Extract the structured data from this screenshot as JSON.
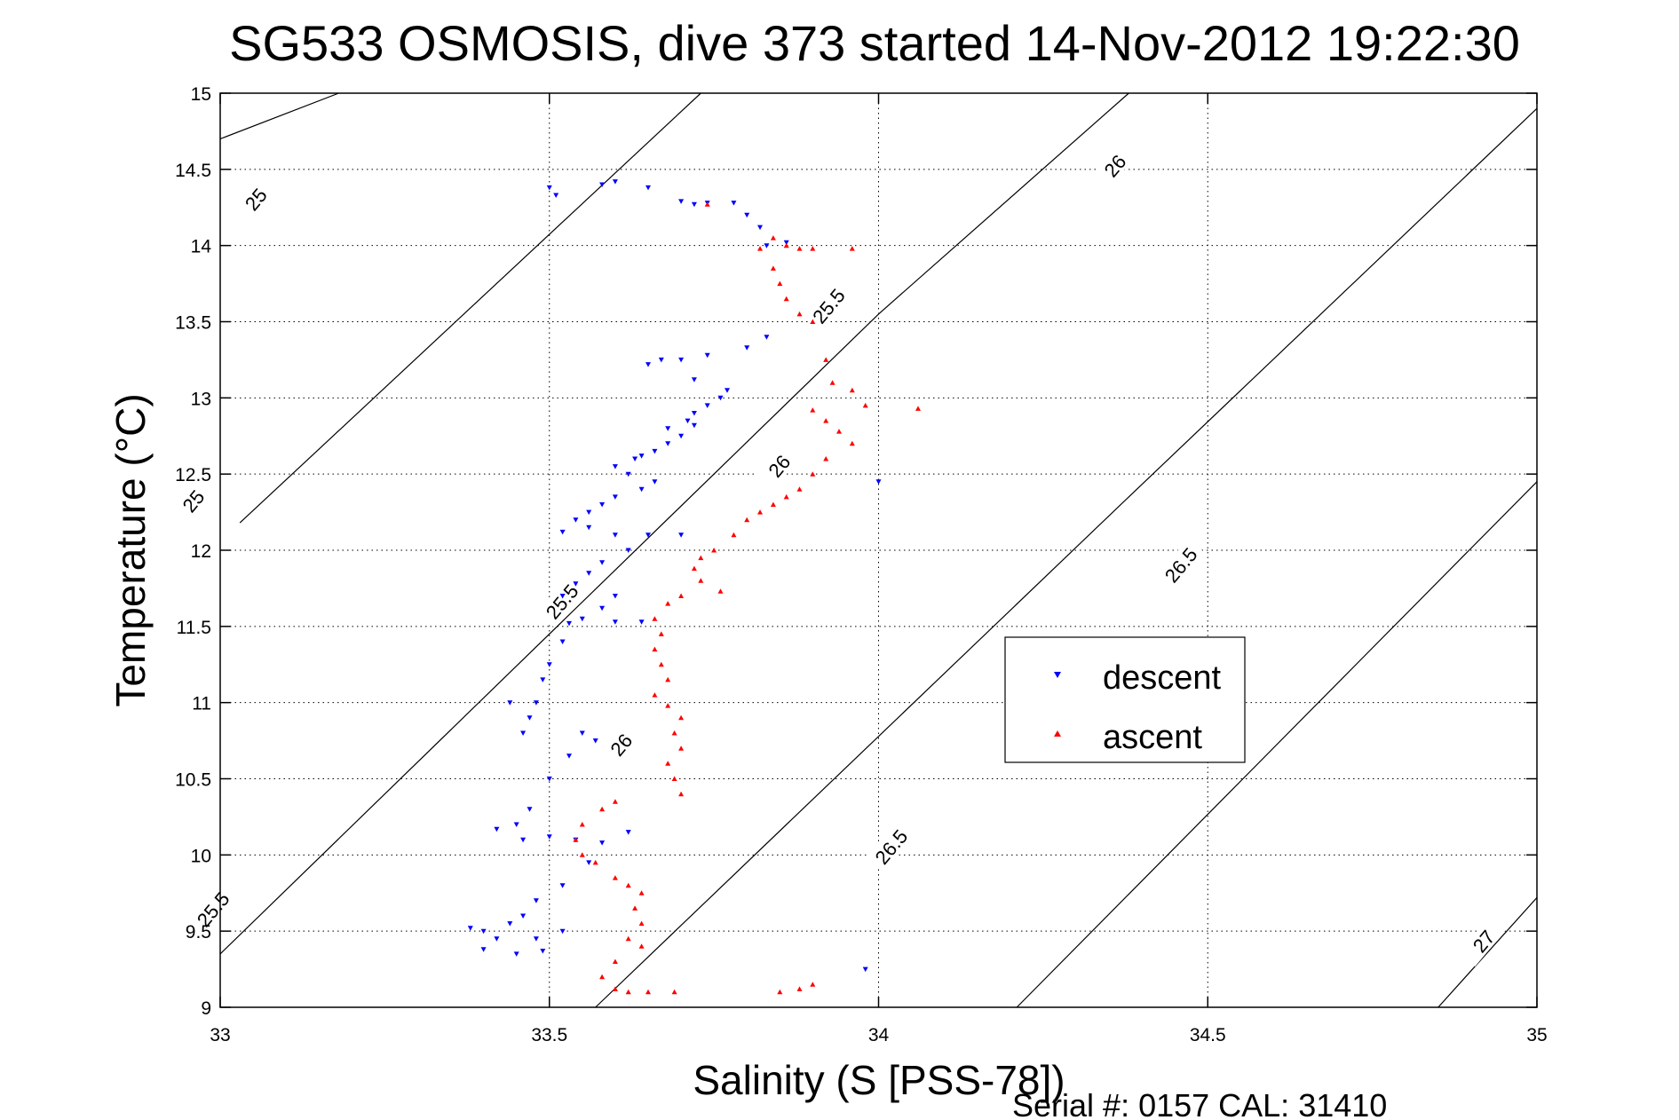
{
  "chart_data": {
    "type": "scatter",
    "title": "SG533 OSMOSIS, dive 373 started 14-Nov-2012 19:22:30",
    "xlabel": "Salinity (S [PSS-78])",
    "ylabel": "Temperature (°C)",
    "xlim": [
      33,
      35
    ],
    "ylim": [
      9,
      15
    ],
    "xticks": [
      "33",
      "33.5",
      "34",
      "34.5",
      "35"
    ],
    "yticks": [
      "9",
      "9.5",
      "10",
      "10.5",
      "11",
      "11.5",
      "12",
      "12.5",
      "13",
      "13.5",
      "14",
      "14.5",
      "15"
    ],
    "grid": true,
    "legend_position": "right",
    "density_contours": [
      {
        "level": "25",
        "labels": [
          "25",
          "25"
        ]
      },
      {
        "level": "25.5",
        "labels": [
          "25.5",
          "25.5",
          "25.5"
        ]
      },
      {
        "level": "26",
        "labels": [
          "26",
          "26",
          "26"
        ]
      },
      {
        "level": "26.5",
        "labels": [
          "26.5",
          "26.5"
        ]
      },
      {
        "level": "27",
        "labels": [
          "27"
        ]
      }
    ],
    "series": [
      {
        "name": "descent",
        "color": "#0000ff",
        "marker": "triangle-down",
        "points": [
          [
            33.5,
            14.38
          ],
          [
            33.51,
            14.33
          ],
          [
            33.58,
            14.4
          ],
          [
            33.6,
            14.42
          ],
          [
            33.65,
            14.38
          ],
          [
            33.7,
            14.29
          ],
          [
            33.74,
            14.28
          ],
          [
            33.78,
            14.28
          ],
          [
            33.8,
            14.2
          ],
          [
            33.82,
            14.12
          ],
          [
            33.83,
            14.0
          ],
          [
            33.86,
            14.02
          ],
          [
            33.83,
            13.4
          ],
          [
            33.8,
            13.33
          ],
          [
            33.74,
            13.28
          ],
          [
            33.7,
            13.25
          ],
          [
            33.67,
            13.25
          ],
          [
            33.65,
            13.22
          ],
          [
            33.72,
            13.12
          ],
          [
            33.77,
            13.05
          ],
          [
            33.76,
            13.0
          ],
          [
            33.74,
            12.95
          ],
          [
            33.72,
            12.9
          ],
          [
            33.71,
            12.85
          ],
          [
            33.68,
            12.8
          ],
          [
            33.72,
            12.82
          ],
          [
            33.7,
            12.75
          ],
          [
            33.68,
            12.7
          ],
          [
            33.66,
            12.65
          ],
          [
            33.64,
            12.62
          ],
          [
            33.63,
            12.6
          ],
          [
            33.6,
            12.55
          ],
          [
            33.62,
            12.5
          ],
          [
            33.66,
            12.45
          ],
          [
            33.64,
            12.4
          ],
          [
            33.6,
            12.35
          ],
          [
            33.58,
            12.3
          ],
          [
            33.56,
            12.25
          ],
          [
            33.54,
            12.2
          ],
          [
            33.52,
            12.12
          ],
          [
            33.56,
            12.15
          ],
          [
            33.6,
            12.1
          ],
          [
            33.65,
            12.1
          ],
          [
            33.7,
            12.1
          ],
          [
            33.62,
            12.0
          ],
          [
            33.58,
            11.92
          ],
          [
            33.56,
            11.85
          ],
          [
            33.54,
            11.78
          ],
          [
            33.52,
            11.7
          ],
          [
            33.6,
            11.7
          ],
          [
            33.58,
            11.62
          ],
          [
            33.55,
            11.55
          ],
          [
            33.53,
            11.52
          ],
          [
            33.6,
            11.53
          ],
          [
            33.64,
            11.53
          ],
          [
            33.52,
            11.4
          ],
          [
            33.5,
            11.25
          ],
          [
            33.49,
            11.15
          ],
          [
            33.48,
            11.0
          ],
          [
            33.47,
            10.9
          ],
          [
            33.46,
            10.8
          ],
          [
            33.44,
            11.0
          ],
          [
            33.55,
            10.8
          ],
          [
            33.57,
            10.75
          ],
          [
            33.53,
            10.65
          ],
          [
            33.5,
            10.5
          ],
          [
            33.47,
            10.3
          ],
          [
            33.45,
            10.2
          ],
          [
            33.42,
            10.17
          ],
          [
            33.46,
            10.1
          ],
          [
            33.5,
            10.12
          ],
          [
            33.54,
            10.1
          ],
          [
            33.58,
            10.08
          ],
          [
            33.62,
            10.15
          ],
          [
            33.56,
            9.95
          ],
          [
            33.52,
            9.8
          ],
          [
            33.48,
            9.7
          ],
          [
            33.46,
            9.6
          ],
          [
            33.44,
            9.55
          ],
          [
            33.4,
            9.5
          ],
          [
            33.38,
            9.52
          ],
          [
            33.42,
            9.45
          ],
          [
            33.48,
            9.45
          ],
          [
            33.52,
            9.5
          ],
          [
            33.4,
            9.38
          ],
          [
            33.45,
            9.35
          ],
          [
            33.49,
            9.37
          ],
          [
            33.98,
            9.25
          ],
          [
            34.0,
            12.45
          ],
          [
            33.72,
            14.27
          ]
        ]
      },
      {
        "name": "ascent",
        "color": "#ff0000",
        "marker": "triangle-up",
        "points": [
          [
            33.74,
            14.27
          ],
          [
            33.84,
            14.05
          ],
          [
            33.82,
            13.98
          ],
          [
            33.86,
            14.0
          ],
          [
            33.88,
            13.98
          ],
          [
            33.9,
            13.98
          ],
          [
            33.96,
            13.98
          ],
          [
            33.84,
            13.85
          ],
          [
            33.85,
            13.75
          ],
          [
            33.86,
            13.65
          ],
          [
            33.88,
            13.55
          ],
          [
            33.9,
            13.5
          ],
          [
            33.92,
            13.25
          ],
          [
            33.93,
            13.1
          ],
          [
            33.96,
            13.05
          ],
          [
            33.98,
            12.95
          ],
          [
            34.06,
            12.93
          ],
          [
            33.9,
            12.92
          ],
          [
            33.92,
            12.85
          ],
          [
            33.94,
            12.78
          ],
          [
            33.96,
            12.7
          ],
          [
            33.92,
            12.6
          ],
          [
            33.9,
            12.5
          ],
          [
            33.88,
            12.4
          ],
          [
            33.86,
            12.35
          ],
          [
            33.84,
            12.3
          ],
          [
            33.82,
            12.25
          ],
          [
            33.8,
            12.2
          ],
          [
            33.78,
            12.1
          ],
          [
            33.75,
            12.0
          ],
          [
            33.73,
            11.95
          ],
          [
            33.72,
            11.88
          ],
          [
            33.73,
            11.8
          ],
          [
            33.76,
            11.73
          ],
          [
            33.7,
            11.7
          ],
          [
            33.68,
            11.65
          ],
          [
            33.66,
            11.55
          ],
          [
            33.67,
            11.45
          ],
          [
            33.66,
            11.35
          ],
          [
            33.67,
            11.25
          ],
          [
            33.68,
            11.15
          ],
          [
            33.66,
            11.05
          ],
          [
            33.68,
            10.98
          ],
          [
            33.7,
            10.9
          ],
          [
            33.69,
            10.8
          ],
          [
            33.7,
            10.7
          ],
          [
            33.68,
            10.6
          ],
          [
            33.69,
            10.5
          ],
          [
            33.7,
            10.4
          ],
          [
            33.6,
            10.35
          ],
          [
            33.58,
            10.3
          ],
          [
            33.55,
            10.2
          ],
          [
            33.54,
            10.1
          ],
          [
            33.55,
            10.0
          ],
          [
            33.57,
            9.95
          ],
          [
            33.6,
            9.85
          ],
          [
            33.62,
            9.8
          ],
          [
            33.64,
            9.75
          ],
          [
            33.63,
            9.65
          ],
          [
            33.64,
            9.55
          ],
          [
            33.62,
            9.45
          ],
          [
            33.64,
            9.4
          ],
          [
            33.6,
            9.3
          ],
          [
            33.58,
            9.2
          ],
          [
            33.6,
            9.12
          ],
          [
            33.62,
            9.1
          ],
          [
            33.65,
            9.1
          ],
          [
            33.69,
            9.1
          ],
          [
            33.85,
            9.1
          ],
          [
            33.88,
            9.12
          ],
          [
            33.9,
            9.15
          ]
        ]
      }
    ]
  },
  "footer": {
    "serial": "Serial #: 0157  CAL: 31410"
  }
}
